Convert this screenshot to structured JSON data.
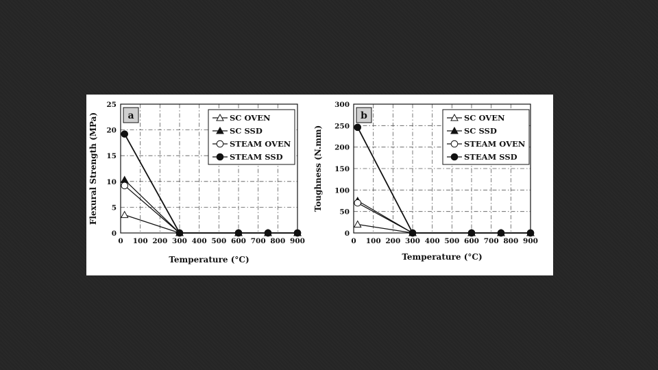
{
  "colors": {
    "background": "#262626",
    "figure": "#ffffff",
    "ink": "#111111",
    "grid": "#555555"
  },
  "chart_data": [
    {
      "type": "line",
      "panel_label": "a",
      "xlabel": "Temperature (°C)",
      "ylabel": "Flexural Strength (MPa)",
      "xlim": [
        0,
        900
      ],
      "ylim": [
        0,
        25
      ],
      "xticks": [
        "0",
        "100",
        "200",
        "300",
        "400",
        "500",
        "600",
        "700",
        "800",
        "900"
      ],
      "yticks": [
        "0",
        "5",
        "10",
        "15",
        "20",
        "25"
      ],
      "grid": true,
      "legend_position": "top-right",
      "x": [
        20,
        300,
        600,
        750,
        900
      ],
      "series": [
        {
          "name": "SC OVEN",
          "marker": "triangle-open",
          "values": [
            3.5,
            0,
            0,
            0,
            0
          ]
        },
        {
          "name": "SC SSD",
          "marker": "triangle-filled",
          "values": [
            10.3,
            0,
            0,
            0,
            0
          ]
        },
        {
          "name": "STEAM OVEN",
          "marker": "circle-open",
          "values": [
            9.2,
            0,
            0,
            0,
            0
          ]
        },
        {
          "name": "STEAM SSD",
          "marker": "circle-filled",
          "values": [
            19.2,
            0,
            0,
            0,
            0
          ]
        }
      ]
    },
    {
      "type": "line",
      "panel_label": "b",
      "xlabel": "Temperature (°C)",
      "ylabel": "Toughness (N.mm)",
      "xlim": [
        0,
        900
      ],
      "ylim": [
        0,
        300
      ],
      "xticks": [
        "0",
        "100",
        "200",
        "300",
        "400",
        "500",
        "600",
        "700",
        "800",
        "900"
      ],
      "yticks": [
        "0",
        "50",
        "100",
        "150",
        "200",
        "250",
        "300"
      ],
      "grid": true,
      "legend_position": "top-right",
      "x": [
        20,
        300,
        600,
        750,
        900
      ],
      "series": [
        {
          "name": "SC OVEN",
          "marker": "triangle-open",
          "values": [
            20,
            0,
            0,
            0,
            0
          ]
        },
        {
          "name": "SC SSD",
          "marker": "triangle-filled",
          "values": [
            75,
            0,
            0,
            0,
            0
          ]
        },
        {
          "name": "STEAM OVEN",
          "marker": "circle-open",
          "values": [
            70,
            0,
            0,
            0,
            0
          ]
        },
        {
          "name": "STEAM SSD",
          "marker": "circle-filled",
          "values": [
            246,
            0,
            0,
            0,
            0
          ]
        }
      ]
    }
  ]
}
